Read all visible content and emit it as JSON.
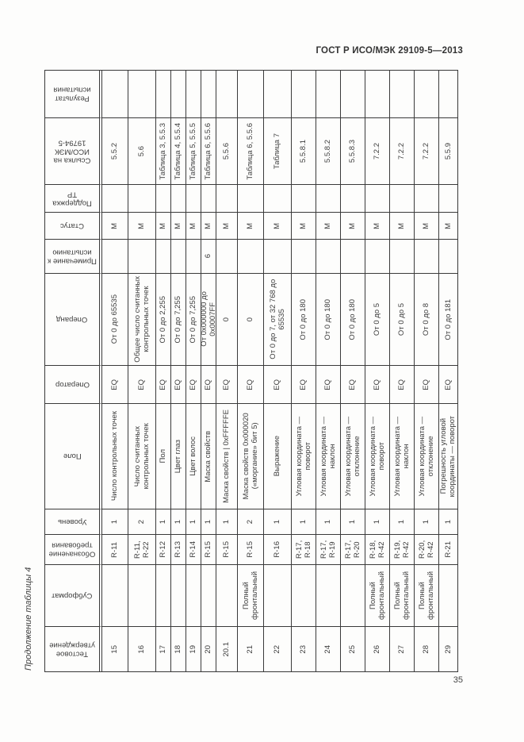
{
  "page": {
    "running_header": "ГОСТ Р ИСО/МЭК 29109-5—2013",
    "continuation_label": "Продолжение таблицы 4",
    "page_number": "35"
  },
  "table": {
    "fields": [
      {
        "key": "result",
        "label": "Результат испытания"
      },
      {
        "key": "reference",
        "label": "Ссылка на ИСО/МЭК 19794-5"
      },
      {
        "key": "tr_support",
        "label": "Поддержка ТР"
      },
      {
        "key": "status",
        "label": "Статус"
      },
      {
        "key": "note",
        "label": "Примечание к испытанию"
      },
      {
        "key": "operand",
        "label": "Операнд"
      },
      {
        "key": "operator",
        "label": "Оператор"
      },
      {
        "key": "field",
        "label": "Поле"
      },
      {
        "key": "level",
        "label": "Уровень"
      },
      {
        "key": "designation",
        "label": "Обозначение требования"
      },
      {
        "key": "subformat",
        "label": "Субформат"
      },
      {
        "key": "id",
        "label": "Тестовое утверждение"
      }
    ],
    "rows": [
      {
        "id": "15",
        "subformat": "",
        "designation": "R-11",
        "level": "1",
        "field": "Число контрольных точек",
        "operator": "EQ",
        "operand": "От 0 до 65535",
        "note": "",
        "status": "М",
        "tr_support": "",
        "reference": "5.5.2",
        "result": ""
      },
      {
        "id": "16",
        "subformat": "",
        "designation": "R-11, R-22",
        "level": "2",
        "field": "Число считанных контрольных точек",
        "operator": "EQ",
        "operand": "Общее число считанных контрольных точек",
        "note": "",
        "status": "М",
        "tr_support": "",
        "reference": "5.6",
        "result": ""
      },
      {
        "id": "17",
        "subformat": "",
        "designation": "R-12",
        "level": "1",
        "field": "Пол",
        "operator": "EQ",
        "operand": "От 0 до 2,255",
        "note": "",
        "status": "М",
        "tr_support": "",
        "reference": "Таблица 3, 5.5.3",
        "result": ""
      },
      {
        "id": "18",
        "subformat": "",
        "designation": "R-13",
        "level": "1",
        "field": "Цвет глаз",
        "operator": "EQ",
        "operand": "От 0 до 7,255",
        "note": "",
        "status": "М",
        "tr_support": "",
        "reference": "Таблица 4, 5.5.4",
        "result": ""
      },
      {
        "id": "19",
        "subformat": "",
        "designation": "R-14",
        "level": "1",
        "field": "Цвет волос",
        "operator": "EQ",
        "operand": "От 0 до 7,255",
        "note": "",
        "status": "М",
        "tr_support": "",
        "reference": "Таблица 5, 5.5.5",
        "result": ""
      },
      {
        "id": "20",
        "subformat": "",
        "designation": "R-15",
        "level": "1",
        "field": "Маска свойств",
        "operator": "EQ",
        "operand": "От 0x000000 до 0x0007FF",
        "note": "6",
        "status": "М",
        "tr_support": "",
        "reference": "Таблица 6, 5.5.6",
        "result": ""
      },
      {
        "id": "20.1",
        "subformat": "",
        "designation": "R-15",
        "level": "1",
        "field": "Маска свойств | 0xFFFFFE",
        "operator": "EQ",
        "operand": "0",
        "note": "",
        "status": "М",
        "tr_support": "",
        "reference": "5.5.6",
        "result": ""
      },
      {
        "id": "21",
        "subformat": "Полный фронтальный",
        "designation": "R-15",
        "level": "2",
        "field": "Маска свойств 0x000020 («моргание» бит 5)",
        "operator": "EQ",
        "operand": "0",
        "note": "",
        "status": "М",
        "tr_support": "",
        "reference": "Таблица 6, 5.5.6",
        "result": ""
      },
      {
        "id": "22",
        "subformat": "",
        "designation": "R-16",
        "level": "1",
        "field": "Выражение",
        "operator": "EQ",
        "operand": "От 0 до 7, от 32 768 до 65535",
        "note": "",
        "status": "М",
        "tr_support": "",
        "reference": "Таблица 7",
        "result": ""
      },
      {
        "id": "23",
        "subformat": "",
        "designation": "R-17, R-18",
        "level": "1",
        "field": "Угловая координата — поворот",
        "operator": "EQ",
        "operand": "От 0 до 180",
        "note": "",
        "status": "М",
        "tr_support": "",
        "reference": "5.5.8.1",
        "result": ""
      },
      {
        "id": "24",
        "subformat": "",
        "designation": "R-17, R-19",
        "level": "1",
        "field": "Угловая координата — наклон",
        "operator": "EQ",
        "operand": "От 0 до 180",
        "note": "",
        "status": "М",
        "tr_support": "",
        "reference": "5.5.8.2",
        "result": ""
      },
      {
        "id": "25",
        "subformat": "",
        "designation": "R-17, R-20",
        "level": "1",
        "field": "Угловая координата — отклонение",
        "operator": "EQ",
        "operand": "От 0 до 180",
        "note": "",
        "status": "М",
        "tr_support": "",
        "reference": "5.5.8.3",
        "result": ""
      },
      {
        "id": "26",
        "subformat": "Полный фронтальный",
        "designation": "R-18, R-42",
        "level": "1",
        "field": "Угловая координата — поворот",
        "operator": "EQ",
        "operand": "От 0 до 5",
        "note": "",
        "status": "М",
        "tr_support": "",
        "reference": "7.2.2",
        "result": ""
      },
      {
        "id": "27",
        "subformat": "Полный фронтальный",
        "designation": "R-19, R-42",
        "level": "1",
        "field": "Угловая координата — наклон",
        "operator": "EQ",
        "operand": "От 0 до 5",
        "note": "",
        "status": "М",
        "tr_support": "",
        "reference": "7.2.2",
        "result": ""
      },
      {
        "id": "28",
        "subformat": "Полный фронтальный",
        "designation": "R-20, R-42",
        "level": "1",
        "field": "Угловая координата — отклонение",
        "operator": "EQ",
        "operand": "От 0 до 8",
        "note": "",
        "status": "М",
        "tr_support": "",
        "reference": "7.2.2",
        "result": ""
      },
      {
        "id": "29",
        "subformat": "",
        "designation": "R-21",
        "level": "1",
        "field": "Погрешность угловой координаты — поворот",
        "operator": "EQ",
        "operand": "От 0 до 181",
        "note": "",
        "status": "М",
        "tr_support": "",
        "reference": "5.5.9",
        "result": ""
      }
    ]
  }
}
